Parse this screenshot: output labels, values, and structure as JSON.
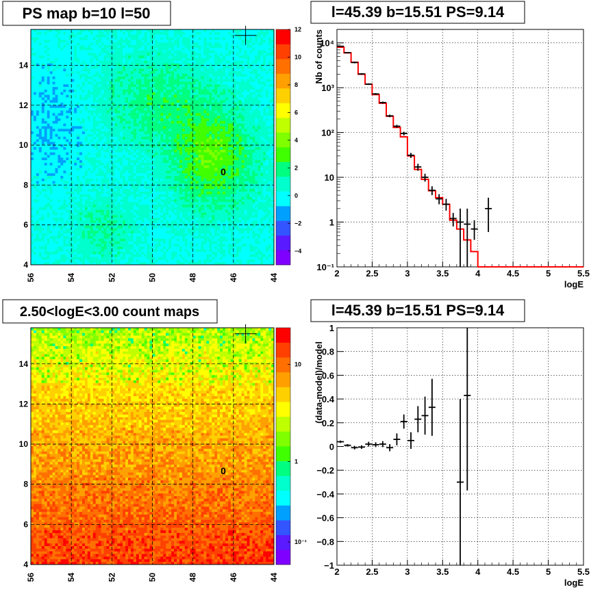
{
  "titles": {
    "ps_map": "PS map b=10 l=50",
    "count_map": "2.50<logE<3.00 count maps",
    "spectrum": "l=45.39 b=15.51 PS=9.14",
    "residual": "l=45.39 b=15.51 PS=9.14"
  },
  "colors": {
    "palette": [
      "#7f00ff",
      "#5a1aff",
      "#3355ff",
      "#00a0ff",
      "#00ffff",
      "#00ffcc",
      "#00ff80",
      "#40ff00",
      "#80ff00",
      "#c0ff00",
      "#ffff00",
      "#ffd000",
      "#ffa000",
      "#ff7000",
      "#ff4000",
      "#ff0000"
    ],
    "model_line": "#ff0000",
    "data_points": "#000000"
  },
  "chart_data": [
    {
      "type": "heatmap",
      "name": "ps-map",
      "title": "PS map b=10 l=50",
      "x_ticks": [
        "56",
        "54",
        "52",
        "50",
        "48",
        "46",
        "44"
      ],
      "y_ticks": [
        "4",
        "6",
        "8",
        "10",
        "12",
        "14"
      ],
      "xlim": [
        56,
        44
      ],
      "ylim": [
        4,
        15.8
      ],
      "colorbar_ticks": [
        "12",
        "10",
        "8",
        "6",
        "4",
        "2",
        "0",
        "−2",
        "−4"
      ],
      "colorbar_range": [
        -5,
        12
      ],
      "marker_text": "0",
      "marker_pos": [
        46.5,
        8.7
      ],
      "cross_pos": [
        45.4,
        15.5
      ]
    },
    {
      "type": "heatmap",
      "name": "count-map",
      "title": "2.50<logE<3.00 count maps",
      "x_ticks": [
        "56",
        "54",
        "52",
        "50",
        "48",
        "46",
        "44"
      ],
      "y_ticks": [
        "4",
        "6",
        "8",
        "10",
        "12",
        "14"
      ],
      "xlim": [
        56,
        44
      ],
      "ylim": [
        4,
        15.8
      ],
      "colorbar_ticks": [
        "10",
        "1",
        "10⁻¹"
      ],
      "colorbar_scale": "log",
      "marker_text": "0",
      "marker_pos": [
        46.5,
        8.7
      ],
      "cross_pos": [
        45.4,
        15.5
      ]
    },
    {
      "type": "line",
      "name": "spectrum",
      "title": "l=45.39 b=15.51 PS=9.14",
      "xlabel": "logE",
      "ylabel": "Nb of counts",
      "yscale": "log",
      "xlim": [
        2,
        5.5
      ],
      "ylim": [
        0.1,
        20000
      ],
      "x_ticks": [
        "2",
        "2.5",
        "3",
        "3.5",
        "4",
        "4.5",
        "5",
        "5.5"
      ],
      "y_ticks": [
        {
          "value": 0.1,
          "label": "10⁻¹"
        },
        {
          "value": 1,
          "label": "1"
        },
        {
          "value": 10,
          "label": "10"
        },
        {
          "value": 100,
          "label": "10²"
        },
        {
          "value": 1000,
          "label": "10³"
        },
        {
          "value": 10000,
          "label": "10⁴"
        }
      ],
      "grid": true,
      "series": [
        {
          "kind": "step",
          "edges": [
            2,
            2.1,
            2.2,
            2.3,
            2.4,
            2.5,
            2.6,
            2.7,
            2.8,
            2.9,
            3,
            3.1,
            3.2,
            3.3,
            3.4,
            3.5,
            3.6,
            3.7,
            3.8,
            3.9,
            4,
            4.1,
            4.2,
            4.3,
            4.4,
            4.5,
            4.6,
            4.7,
            4.8,
            4.9,
            5,
            5.1,
            5.2,
            5.3,
            5.4,
            5.5
          ],
          "values": [
            8000,
            6000,
            3700,
            2000,
            1200,
            700,
            450,
            230,
            130,
            80,
            30,
            15,
            9,
            5,
            3.5,
            2.5,
            1.1,
            0.7,
            0.4,
            0.22,
            0.1,
            0.1,
            0.1,
            0.1,
            0.1,
            0.1,
            0.1,
            0.1,
            0.1,
            0.1,
            0.1,
            0.1,
            0.1,
            0.1,
            0.1
          ]
        },
        {
          "kind": "errorbar",
          "x": [
            2.05,
            2.15,
            2.25,
            2.35,
            2.45,
            2.55,
            2.65,
            2.75,
            2.85,
            2.95,
            3.05,
            3.15,
            3.25,
            3.35,
            3.45,
            3.55,
            3.65,
            3.75,
            3.85,
            3.95,
            4.15
          ],
          "y": [
            8400,
            6050,
            3650,
            2030,
            1200,
            725,
            465,
            235,
            138,
            95,
            31,
            17,
            10,
            5.1,
            3.3,
            2.5,
            1.2,
            1.0,
            0.9,
            0.7,
            2.0
          ],
          "ylow": [
            8200,
            5900,
            3500,
            1950,
            1150,
            690,
            440,
            220,
            128,
            86,
            27,
            14,
            8,
            4.0,
            2.5,
            1.8,
            0.8,
            0.1,
            0.1,
            0.4,
            0.6
          ],
          "yhigh": [
            8600,
            6200,
            3800,
            2110,
            1250,
            760,
            490,
            250,
            148,
            104,
            35,
            20,
            12,
            6.3,
            4.2,
            3.3,
            1.6,
            2.0,
            2.0,
            1.1,
            3.5
          ]
        }
      ]
    },
    {
      "type": "scatter",
      "name": "residual",
      "title": "l=45.39 b=15.51 PS=9.14",
      "xlabel": "logE",
      "ylabel": "(data-model)/model",
      "xlim": [
        2,
        5.5
      ],
      "ylim": [
        -1,
        1
      ],
      "x_ticks": [
        "2",
        "2.5",
        "3",
        "3.5",
        "4",
        "4.5",
        "5",
        "5.5"
      ],
      "y_ticks": [
        "−1",
        "−0.8",
        "−0.6",
        "−0.4",
        "−0.2",
        "0",
        "0.2",
        "0.4",
        "0.6",
        "0.8",
        "1"
      ],
      "grid": true,
      "points": {
        "x": [
          2.05,
          2.15,
          2.25,
          2.35,
          2.45,
          2.55,
          2.65,
          2.75,
          2.85,
          2.95,
          3.05,
          3.15,
          3.25,
          3.35,
          3.75,
          3.85
        ],
        "y": [
          0.04,
          0.01,
          -0.01,
          -0.005,
          0.02,
          0.015,
          0.02,
          -0.01,
          0.06,
          0.21,
          0.05,
          0.23,
          0.26,
          0.33,
          -0.3,
          0.43
        ],
        "err": [
          0.01,
          0.01,
          0.015,
          0.015,
          0.02,
          0.02,
          0.025,
          0.03,
          0.05,
          0.06,
          0.07,
          0.11,
          0.16,
          0.24,
          0.7,
          0.8
        ]
      }
    }
  ]
}
